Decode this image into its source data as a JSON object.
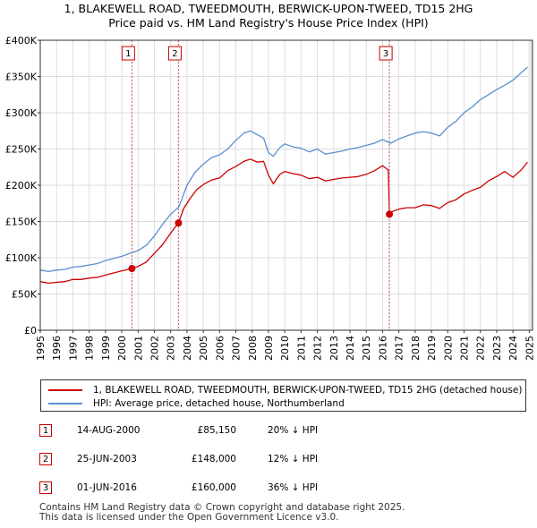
{
  "title_line1": "1, BLAKEWELL ROAD, TWEEDMOUTH, BERWICK-UPON-TWEED, TD15 2HG",
  "title_line2": "Price paid vs. HM Land Registry's House Price Index (HPI)",
  "chart_data": {
    "type": "line",
    "title": "1, BLAKEWELL ROAD, TWEEDMOUTH, BERWICK-UPON-TWEED, TD15 2HG Price paid vs. HM Land Registry's House Price Index (HPI)",
    "xlabel": "",
    "ylabel": "",
    "xlim": [
      1995,
      2025.2
    ],
    "ylim": [
      0,
      400000
    ],
    "y_ticks": [
      0,
      50000,
      100000,
      150000,
      200000,
      250000,
      300000,
      350000,
      400000
    ],
    "y_tick_labels": [
      "£0",
      "£50K",
      "£100K",
      "£150K",
      "£200K",
      "£250K",
      "£300K",
      "£350K",
      "£400K"
    ],
    "x_ticks": [
      1995,
      1996,
      1997,
      1998,
      1999,
      2000,
      2001,
      2002,
      2003,
      2004,
      2005,
      2006,
      2007,
      2008,
      2009,
      2010,
      2011,
      2012,
      2013,
      2014,
      2015,
      2016,
      2017,
      2018,
      2019,
      2020,
      2021,
      2022,
      2023,
      2024,
      2025
    ],
    "grid": true,
    "series": [
      {
        "name": "1, BLAKEWELL ROAD, TWEEDMOUTH, BERWICK-UPON-TWEED, TD15 2HG (detached house)",
        "color": "#cc0000",
        "x": [
          1995.0,
          1995.5,
          1996.0,
          1996.5,
          1997.0,
          1997.5,
          1998.0,
          1998.5,
          1999.0,
          1999.5,
          2000.0,
          2000.62,
          2001.0,
          2001.5,
          2002.0,
          2002.5,
          2003.0,
          2003.48,
          2003.8,
          2004.2,
          2004.6,
          2005.0,
          2005.5,
          2006.0,
          2006.5,
          2007.0,
          2007.5,
          2007.9,
          2008.3,
          2008.7,
          2009.0,
          2009.3,
          2009.7,
          2010.0,
          2010.5,
          2011.0,
          2011.5,
          2012.0,
          2012.5,
          2013.0,
          2013.5,
          2014.0,
          2014.5,
          2015.0,
          2015.5,
          2016.0,
          2016.35,
          2016.42,
          2016.5,
          2017.0,
          2017.5,
          2018.0,
          2018.5,
          2019.0,
          2019.5,
          2020.0,
          2020.5,
          2021.0,
          2021.5,
          2022.0,
          2022.5,
          2023.0,
          2023.5,
          2024.0,
          2024.5,
          2024.9
        ],
        "values": [
          67000,
          65000,
          66000,
          67000,
          70000,
          70000,
          72000,
          73000,
          76000,
          79000,
          82000,
          85150,
          88000,
          94000,
          106000,
          118000,
          134000,
          148000,
          168000,
          182000,
          194000,
          201000,
          207000,
          210000,
          220000,
          226000,
          233000,
          236000,
          232000,
          233000,
          214000,
          202000,
          215000,
          219000,
          216000,
          214000,
          209000,
          211000,
          206000,
          208000,
          210000,
          211000,
          212000,
          215000,
          220000,
          227000,
          221000,
          160000,
          163000,
          167000,
          169000,
          169000,
          173000,
          172000,
          168000,
          176000,
          180000,
          188000,
          193000,
          197000,
          206000,
          212000,
          219000,
          211000,
          221000,
          232000
        ]
      },
      {
        "name": "HPI: Average price, detached house, Northumberland",
        "color": "#5b8fcf",
        "x": [
          1995.0,
          1995.5,
          1996.0,
          1996.5,
          1997.0,
          1997.5,
          1998.0,
          1998.5,
          1999.0,
          1999.5,
          2000.0,
          2000.5,
          2001.0,
          2001.5,
          2002.0,
          2002.5,
          2003.0,
          2003.5,
          2004.0,
          2004.5,
          2005.0,
          2005.5,
          2006.0,
          2006.5,
          2007.0,
          2007.5,
          2007.9,
          2008.3,
          2008.7,
          2009.0,
          2009.3,
          2009.7,
          2010.0,
          2010.5,
          2011.0,
          2011.5,
          2012.0,
          2012.5,
          2013.0,
          2013.5,
          2014.0,
          2014.5,
          2015.0,
          2015.5,
          2016.0,
          2016.5,
          2017.0,
          2017.5,
          2018.0,
          2018.5,
          2019.0,
          2019.5,
          2020.0,
          2020.5,
          2021.0,
          2021.5,
          2022.0,
          2022.5,
          2023.0,
          2023.5,
          2024.0,
          2024.5,
          2024.9
        ],
        "values": [
          83000,
          81000,
          83000,
          84000,
          87000,
          88000,
          90000,
          92000,
          96000,
          99000,
          102000,
          106000,
          110000,
          117000,
          130000,
          146000,
          160000,
          170000,
          200000,
          218000,
          229000,
          238000,
          242000,
          250000,
          262000,
          272000,
          275000,
          270000,
          265000,
          245000,
          240000,
          252000,
          257000,
          253000,
          251000,
          246000,
          250000,
          243000,
          245000,
          247000,
          250000,
          252000,
          255000,
          258000,
          263000,
          258000,
          264000,
          268000,
          272000,
          274000,
          272000,
          268000,
          280000,
          288000,
          300000,
          308000,
          318000,
          325000,
          332000,
          338000,
          345000,
          355000,
          363000
        ]
      }
    ],
    "transactions": [
      {
        "label": "1",
        "x": 2000.62,
        "value": 85150
      },
      {
        "label": "2",
        "x": 2003.48,
        "value": 148000
      },
      {
        "label": "3",
        "x": 2016.42,
        "value": 160000
      }
    ]
  },
  "legend": {
    "property_label": "1, BLAKEWELL ROAD, TWEEDMOUTH, BERWICK-UPON-TWEED, TD15 2HG (detached house)",
    "hpi_label": "HPI: Average price, detached house, Northumberland",
    "property_color": "#cc0000",
    "hpi_color": "#5b8fcf"
  },
  "transactions": [
    {
      "num": "1",
      "date": "14-AUG-2000",
      "price": "£85,150",
      "hpi": "20% ↓ HPI"
    },
    {
      "num": "2",
      "date": "25-JUN-2003",
      "price": "£148,000",
      "hpi": "12% ↓ HPI"
    },
    {
      "num": "3",
      "date": "01-JUN-2016",
      "price": "£160,000",
      "hpi": "36% ↓ HPI"
    }
  ],
  "footer_line1": "Contains HM Land Registry data © Crown copyright and database right 2025.",
  "footer_line2": "This data is licensed under the Open Government Licence v3.0."
}
